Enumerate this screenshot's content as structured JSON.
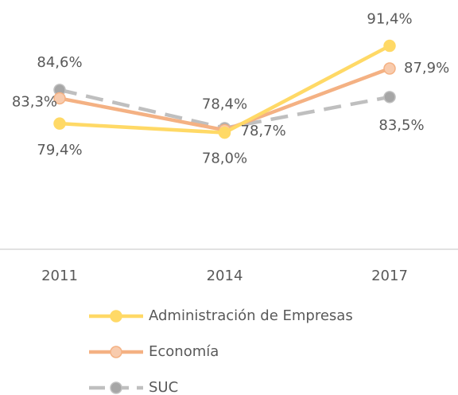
{
  "chart_data": {
    "type": "line",
    "categories": [
      "2011",
      "2014",
      "2017"
    ],
    "ylim": [
      60,
      100
    ],
    "series": [
      {
        "name": "Administración de Empresas",
        "color": "#FFD966",
        "values": [
          79.4,
          78.0,
          91.4
        ],
        "value_labels": [
          "79,4%",
          "78,0%",
          "91,4%"
        ]
      },
      {
        "name": "Economía",
        "color": "#F4B183",
        "values": [
          83.3,
          78.4,
          87.9
        ],
        "value_labels": [
          "83,3%",
          "78,4%",
          "87,9%"
        ]
      },
      {
        "name": "SUC",
        "color": "#BFBFBF",
        "values": [
          84.6,
          78.7,
          83.5
        ],
        "value_labels": [
          "84,6%",
          "78,7%",
          "83,5%"
        ]
      }
    ]
  }
}
